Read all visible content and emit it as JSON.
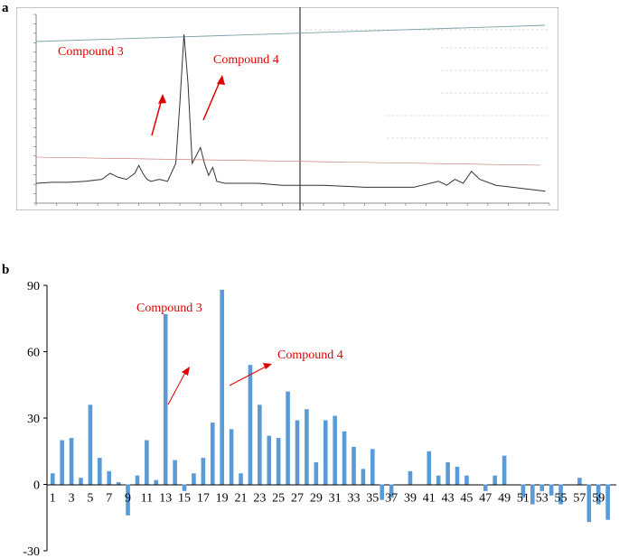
{
  "panels": {
    "a": "a",
    "b": "b"
  },
  "chart_data": [
    {
      "type": "line",
      "title": "",
      "xlabel": "",
      "ylabel": "",
      "xlim": [
        0,
        62.5
      ],
      "ylim": [
        -10,
        85
      ],
      "x": [
        0,
        2,
        4,
        6,
        8,
        9,
        10,
        11,
        12,
        12.5,
        13,
        13.5,
        14,
        15,
        16,
        17,
        17.5,
        18,
        18.5,
        19,
        20,
        20.5,
        21,
        21.5,
        22,
        23,
        24,
        25,
        27,
        30,
        35,
        40,
        44,
        46,
        47,
        48,
        49,
        50,
        51,
        52,
        53,
        54,
        56,
        58,
        60,
        62
      ],
      "series": [
        {
          "name": "",
          "values": [
            0,
            0.5,
            0.5,
            1,
            2,
            5,
            3,
            2,
            5,
            9,
            5,
            2,
            1,
            2,
            1,
            10,
            40,
            75,
            50,
            10,
            18,
            10,
            4,
            8,
            1,
            0,
            0,
            0,
            0,
            -1,
            -1,
            -2,
            -2,
            -2,
            -1,
            0,
            1,
            -1,
            2,
            0,
            6,
            2,
            -1,
            -2,
            -3,
            -4
          ]
        }
      ],
      "annotations": [
        {
          "text": "Compound 3",
          "x": 14,
          "y": 38
        },
        {
          "text": "Compound 4",
          "x": 21,
          "y": 30
        }
      ]
    },
    {
      "type": "bar",
      "title": "",
      "xlabel": "",
      "ylabel": "",
      "ylim": [
        -30,
        90
      ],
      "yticks": [
        -30,
        0,
        30,
        60,
        90
      ],
      "categories": [
        1,
        2,
        3,
        4,
        5,
        6,
        7,
        8,
        9,
        10,
        11,
        12,
        13,
        14,
        15,
        16,
        17,
        18,
        19,
        20,
        21,
        22,
        23,
        24,
        25,
        26,
        27,
        28,
        29,
        30,
        31,
        32,
        33,
        34,
        35,
        36,
        37,
        38,
        39,
        40,
        41,
        42,
        43,
        44,
        45,
        46,
        47,
        48,
        49,
        50,
        51,
        52,
        53,
        54,
        55,
        56,
        57,
        58,
        59,
        60
      ],
      "xtick_labels": [
        1,
        3,
        5,
        7,
        9,
        11,
        13,
        15,
        17,
        19,
        21,
        23,
        25,
        27,
        29,
        31,
        33,
        35,
        37,
        39,
        41,
        43,
        45,
        47,
        49,
        51,
        53,
        55,
        57,
        59
      ],
      "values": [
        5,
        20,
        21,
        3,
        36,
        12,
        6,
        1,
        -14,
        4,
        20,
        2,
        77,
        11,
        -3,
        5,
        12,
        28,
        88,
        25,
        5,
        54,
        36,
        22,
        21,
        42,
        29,
        34,
        10,
        29,
        31,
        24,
        17,
        7,
        16,
        -7,
        -6,
        0,
        6,
        0,
        15,
        4,
        10,
        8,
        4,
        0,
        -3,
        4,
        13,
        0,
        -6,
        -9,
        -3,
        -5,
        -9,
        0,
        3,
        -17,
        -9,
        -16
      ],
      "annotations": [
        {
          "text": "Compound 3"
        },
        {
          "text": "Compound 4"
        }
      ]
    }
  ]
}
